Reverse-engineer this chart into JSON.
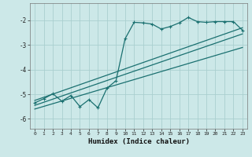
{
  "xlabel": "Humidex (Indice chaleur)",
  "bg_color": "#cce8e8",
  "grid_color": "#aacfcf",
  "line_color": "#1a7070",
  "xlim": [
    -0.5,
    23.5
  ],
  "ylim": [
    -6.4,
    -1.3
  ],
  "yticks": [
    -6,
    -5,
    -4,
    -3,
    -2
  ],
  "xticks": [
    0,
    1,
    2,
    3,
    4,
    5,
    6,
    7,
    8,
    9,
    10,
    11,
    12,
    13,
    14,
    15,
    16,
    17,
    18,
    19,
    20,
    21,
    22,
    23
  ],
  "line1": [
    [
      0,
      -5.25
    ],
    [
      23,
      -2.3
    ]
  ],
  "line2": [
    [
      0,
      -5.45
    ],
    [
      23,
      -2.55
    ]
  ],
  "line3": [
    [
      0,
      -5.6
    ],
    [
      23,
      -3.1
    ]
  ],
  "zigzag": [
    [
      0,
      -5.35
    ],
    [
      1,
      -5.18
    ],
    [
      2,
      -4.98
    ],
    [
      3,
      -5.28
    ],
    [
      4,
      -5.05
    ],
    [
      5,
      -5.5
    ],
    [
      6,
      -5.22
    ],
    [
      7,
      -5.55
    ],
    [
      8,
      -4.75
    ],
    [
      9,
      -4.45
    ],
    [
      10,
      -2.75
    ],
    [
      11,
      -2.08
    ],
    [
      12,
      -2.1
    ],
    [
      13,
      -2.15
    ],
    [
      14,
      -2.35
    ],
    [
      15,
      -2.25
    ],
    [
      16,
      -2.1
    ],
    [
      17,
      -1.88
    ],
    [
      18,
      -2.05
    ],
    [
      19,
      -2.08
    ],
    [
      20,
      -2.05
    ],
    [
      21,
      -2.05
    ],
    [
      22,
      -2.05
    ],
    [
      23,
      -2.4
    ]
  ]
}
